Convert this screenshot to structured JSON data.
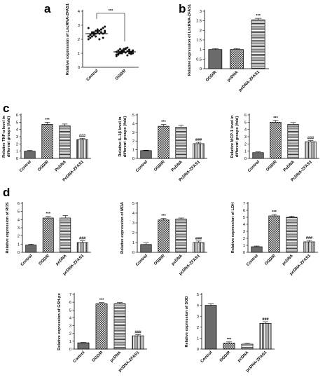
{
  "panel_letters": [
    "a",
    "b",
    "c",
    "d"
  ],
  "chart_data": [
    {
      "id": "a",
      "type": "scatter",
      "categories": [
        "Control",
        "OGD/R"
      ],
      "ylabel": "Relative expression of LncRNA-ZFAS1",
      "ylim": [
        0,
        4
      ],
      "yticks": [
        0,
        1,
        2,
        3,
        4
      ],
      "means": [
        2.4,
        1.1
      ],
      "points": [
        [
          2.0,
          2.1,
          2.2,
          2.3,
          2.4,
          2.5,
          2.6,
          2.7,
          2.8,
          2.9,
          2.2,
          2.3,
          2.4,
          2.5,
          2.6,
          2.7,
          2.4,
          2.5,
          2.1,
          2.6,
          2.8,
          2.3,
          2.5,
          2.4,
          2.2,
          2.6,
          2.0,
          2.7,
          2.4,
          2.5
        ],
        [
          0.8,
          0.9,
          1.0,
          1.1,
          1.2,
          1.3,
          1.4,
          1.0,
          1.1,
          1.2,
          0.9,
          1.0,
          1.1,
          1.2,
          1.3,
          1.05,
          1.15,
          1.25,
          0.95,
          1.0,
          1.1,
          1.2,
          1.3,
          1.0,
          1.1,
          1.35,
          0.85,
          1.15,
          1.05,
          1.2
        ]
      ],
      "bracket": "***"
    },
    {
      "id": "b",
      "type": "bar",
      "categories": [
        "OGD/R",
        "pcDNA",
        "pcDNA-ZFAS1"
      ],
      "values": [
        1.0,
        1.0,
        2.55
      ],
      "errors": [
        0.05,
        0.05,
        0.08
      ],
      "ylabel": "Relative expression of LncRNA-ZFAS1",
      "ylim": [
        0,
        3
      ],
      "yticks": [
        0,
        0.5,
        1,
        1.5,
        2,
        2.5,
        3
      ],
      "fills": [
        "solid",
        "check",
        "hstripe"
      ],
      "sig": [
        "",
        "",
        "***"
      ]
    },
    {
      "id": "c1",
      "type": "bar",
      "categories": [
        "Control",
        "OGD/R",
        "PcDNA",
        "PcDNA-ZFAS1"
      ],
      "values": [
        1.0,
        4.7,
        4.5,
        2.6
      ],
      "errors": [
        0.1,
        0.3,
        0.25,
        0.15
      ],
      "ylabel": "Relative TNF-α level in different groups (fold)",
      "ylim": [
        0,
        6
      ],
      "yticks": [
        0,
        1,
        2,
        3,
        4,
        5,
        6
      ],
      "fills": [
        "solid",
        "check",
        "hstripe",
        "vstripe"
      ],
      "sig": [
        "",
        "***",
        "",
        "###"
      ]
    },
    {
      "id": "c2",
      "type": "bar",
      "categories": [
        "Control",
        "OGD/R",
        "PcDNA",
        "PcDNA-ZFAS1"
      ],
      "values": [
        0.9,
        3.7,
        3.6,
        1.7
      ],
      "errors": [
        0.05,
        0.2,
        0.2,
        0.15
      ],
      "ylabel": "Relative IL-1β level in different groups (fold)",
      "ylim": [
        0,
        5
      ],
      "yticks": [
        0,
        1,
        2,
        3,
        4,
        5
      ],
      "fills": [
        "solid",
        "check",
        "hstripe",
        "vstripe"
      ],
      "sig": [
        "",
        "***",
        "",
        "###"
      ]
    },
    {
      "id": "c3",
      "type": "bar",
      "categories": [
        "Control",
        "OGD/R",
        "PcDNA",
        "PcDNA-ZFAS1"
      ],
      "values": [
        0.8,
        5.0,
        4.7,
        2.3
      ],
      "errors": [
        0.1,
        0.25,
        0.25,
        0.15
      ],
      "ylabel": "Relative MCP-1 level in different groups (fold)",
      "ylim": [
        0,
        6
      ],
      "yticks": [
        0,
        1,
        2,
        3,
        4,
        5,
        6
      ],
      "fills": [
        "solid",
        "check",
        "hstripe",
        "vstripe"
      ],
      "sig": [
        "",
        "***",
        "",
        "###"
      ]
    },
    {
      "id": "d1",
      "type": "bar",
      "categories": [
        "Control",
        "OGD/R",
        "pcDNA",
        "pcDNA-ZFAS1"
      ],
      "values": [
        0.9,
        4.2,
        4.2,
        1.2
      ],
      "errors": [
        0.1,
        0.2,
        0.3,
        0.2
      ],
      "ylabel": "Relative expression of ROS",
      "ylim": [
        0,
        6
      ],
      "yticks": [
        0,
        1,
        2,
        3,
        4,
        5,
        6
      ],
      "fills": [
        "solid",
        "check",
        "hstripe",
        "vstripe"
      ],
      "sig": [
        "",
        "***",
        "",
        "###"
      ]
    },
    {
      "id": "d2",
      "type": "bar",
      "categories": [
        "Control",
        "OGD/R",
        "pcDNA",
        "pcDNA-ZFAS1"
      ],
      "values": [
        0.8,
        3.3,
        3.4,
        1.0
      ],
      "errors": [
        0.15,
        0.15,
        0.1,
        0.15
      ],
      "ylabel": "Relative expression of MDA",
      "ylim": [
        0,
        5
      ],
      "yticks": [
        0,
        1,
        2,
        3,
        4,
        5
      ],
      "fills": [
        "solid",
        "check",
        "hstripe",
        "vstripe"
      ],
      "sig": [
        "",
        "***",
        "",
        "###"
      ]
    },
    {
      "id": "d3",
      "type": "bar",
      "categories": [
        "Control",
        "OGD/R",
        "pcDNA",
        "pcDNA-ZFAS1"
      ],
      "values": [
        0.8,
        5.2,
        5.0,
        1.5
      ],
      "errors": [
        0.1,
        0.2,
        0.15,
        0.2
      ],
      "ylabel": "Relative expression of LDH",
      "ylim": [
        0,
        7
      ],
      "yticks": [
        0,
        1,
        2,
        3,
        4,
        5,
        6,
        7
      ],
      "fills": [
        "solid",
        "check",
        "hstripe",
        "vstripe"
      ],
      "sig": [
        "",
        "***",
        "",
        "###"
      ]
    },
    {
      "id": "d4",
      "type": "bar",
      "categories": [
        "Control",
        "OGD/R",
        "pcDNA",
        "pcDNA-ZFAS1"
      ],
      "values": [
        0.8,
        5.8,
        5.8,
        1.7
      ],
      "errors": [
        0.05,
        0.15,
        0.15,
        0.15
      ],
      "ylabel": "Relative expression of GSH-px",
      "ylim": [
        0,
        7
      ],
      "yticks": [
        0,
        1,
        2,
        3,
        4,
        5,
        6,
        7
      ],
      "fills": [
        "solid",
        "check",
        "hstripe",
        "vstripe"
      ],
      "sig": [
        "",
        "***",
        "",
        "###"
      ]
    },
    {
      "id": "d5",
      "type": "bar",
      "categories": [
        "Control",
        "OGD/R",
        "pcDNA",
        "pcDNA-ZFAS1"
      ],
      "values": [
        4.0,
        0.55,
        0.45,
        2.35
      ],
      "errors": [
        0.15,
        0.1,
        0.08,
        0.15
      ],
      "ylabel": "Relative expression of SOD",
      "ylim": [
        0,
        5
      ],
      "yticks": [
        0,
        1,
        2,
        3,
        4,
        5
      ],
      "fills": [
        "solid",
        "check",
        "hstripe",
        "vstripe"
      ],
      "sig": [
        "",
        "***",
        "",
        "###"
      ]
    }
  ]
}
